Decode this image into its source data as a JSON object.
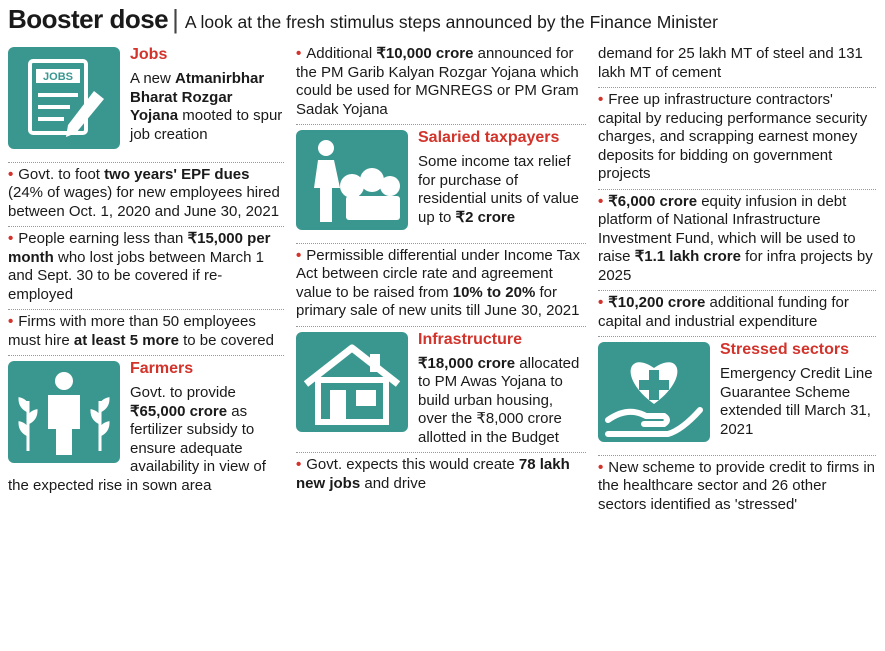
{
  "header": {
    "title": "Booster dose",
    "subtitle": "A look at the fresh stimulus steps announced by the Finance Minister"
  },
  "columns": [
    [
      {
        "heading": "Jobs",
        "body": [
          {
            "text": "A new "
          },
          {
            "text": "Atmanirbhar Bharat Rozgar Yojana",
            "bold": true
          },
          {
            "text": " mooted to spur job creation"
          }
        ]
      },
      {
        "bullet": [
          {
            "text": "Govt. to foot "
          },
          {
            "text": "two years' EPF dues",
            "bold": true
          },
          {
            "text": " (24% of wages) for new employees hired between Oct. 1, 2020 and June 30, 2021"
          }
        ]
      },
      {
        "bullet": [
          {
            "text": "People earning less than "
          },
          {
            "text": "₹15,000 per month",
            "bold": true
          },
          {
            "text": " who lost jobs between March 1  and Sept. 30 to be covered if re-employed"
          }
        ]
      },
      {
        "bullet": [
          {
            "text": "Firms with more than 50 employees must hire "
          },
          {
            "text": "at least 5 more",
            "bold": true
          },
          {
            "text": " to be covered"
          }
        ]
      },
      {
        "heading": "Farmers",
        "body": [
          {
            "text": "Govt. to provide "
          },
          {
            "text": "₹65,000 crore",
            "bold": true
          },
          {
            "text": " as fertilizer subsidy to ensure adequate availability in view of the expected rise in sown area"
          }
        ]
      }
    ],
    [
      {
        "bullet": [
          {
            "text": "Additional "
          },
          {
            "text": "₹10,000 crore",
            "bold": true
          },
          {
            "text": " announced for the PM Garib Kalyan Rozgar Yojana which could be used for MGNREGS or PM Gram Sadak Yojana"
          }
        ]
      },
      {
        "heading": "Salaried taxpayers",
        "body": [
          {
            "text": "Some income tax relief for purchase of residential units of value up to "
          },
          {
            "text": "₹2 crore",
            "bold": true
          }
        ]
      },
      {
        "bullet": [
          {
            "text": "Permissible differential under Income Tax Act between circle rate and agreement value to be raised from "
          },
          {
            "text": "10% to 20%",
            "bold": true
          },
          {
            "text": " for primary sale of new units till June 30, 2021"
          }
        ]
      },
      {
        "heading": "Infrastructure",
        "body": [
          {
            "text": "₹18,000 crore",
            "bold": true
          },
          {
            "text": " allocated to PM Awas Yojana to build urban housing, over the ₹8,000 crore allotted in the Budget"
          }
        ]
      },
      {
        "bullet": [
          {
            "text": "Govt. expects this would create "
          },
          {
            "text": "78 lakh new jobs",
            "bold": true
          },
          {
            "text": " and drive"
          }
        ]
      }
    ],
    [
      {
        "text": [
          {
            "text": "demand for 25 lakh MT of steel and 131 lakh MT of cement"
          }
        ]
      },
      {
        "bullet": [
          {
            "text": "Free up infrastructure contractors' capital by reducing performance security charges, and scrapping earnest money deposits for bidding on government projects"
          }
        ]
      },
      {
        "bullet": [
          {
            "text": "₹6,000 crore",
            "bold": true
          },
          {
            "text": " equity infusion in debt platform of National Infrastructure Investment Fund, which will be used to raise "
          },
          {
            "text": "₹1.1 lakh crore",
            "bold": true
          },
          {
            "text": " for infra projects by 2025"
          }
        ]
      },
      {
        "bullet": [
          {
            "text": "₹10,200 crore",
            "bold": true
          },
          {
            "text": " additional funding for capital and industrial expenditure"
          }
        ]
      },
      {
        "heading": "Stressed sectors",
        "body": [
          {
            "text": "Emergency Credit Line Guarantee Scheme extended till March 31, 2021"
          }
        ]
      },
      {
        "bullet": [
          {
            "text": "New scheme to provide credit to firms in the healthcare sector and 26 other sectors identified as 'stressed'"
          }
        ]
      }
    ]
  ]
}
